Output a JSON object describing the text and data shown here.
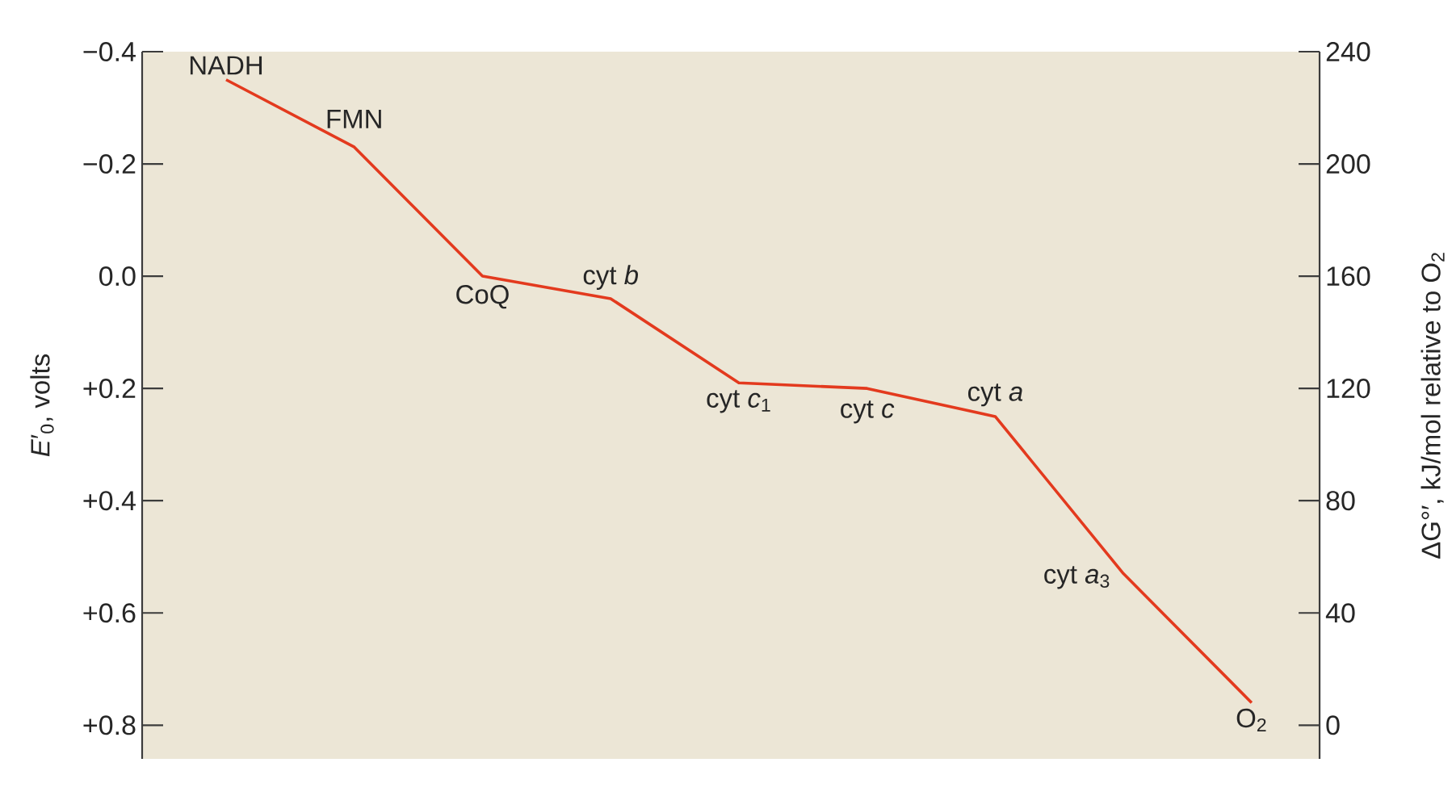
{
  "chart_data": {
    "type": "line",
    "categories": [
      "NADH",
      "FMN",
      "CoQ",
      "cyt *b*",
      "cyt *c*$_{1}$",
      "cyt *c*",
      "cyt *a*",
      "cyt *a*$_{3}$",
      "O$_{2}$"
    ],
    "values": [
      -0.35,
      -0.23,
      0.0,
      0.04,
      0.19,
      0.2,
      0.25,
      0.53,
      0.76
    ],
    "color": "#e33a1e",
    "marker": "none",
    "line_style": "solid",
    "tick_labels": "y",
    "ylabel": "*E*′$_{0}$, volts",
    "y2label": "ΔG°′, kJ/mol relative to O$_{2}$",
    "ylim": [
      0.86,
      -0.4
    ],
    "yticks": [
      {
        "value": -0.4,
        "label": "−0.4"
      },
      {
        "value": -0.2,
        "label": "−0.2"
      },
      {
        "value": 0.0,
        "label": "0.0"
      },
      {
        "value": 0.2,
        "label": "+0.2"
      },
      {
        "value": 0.4,
        "label": "+0.4"
      },
      {
        "value": 0.6,
        "label": "+0.6"
      },
      {
        "value": 0.8,
        "label": "+0.8"
      }
    ],
    "y2lim": [
      -12,
      240
    ],
    "y2ticks": [
      0,
      40,
      80,
      120,
      160,
      200,
      240
    ]
  }
}
